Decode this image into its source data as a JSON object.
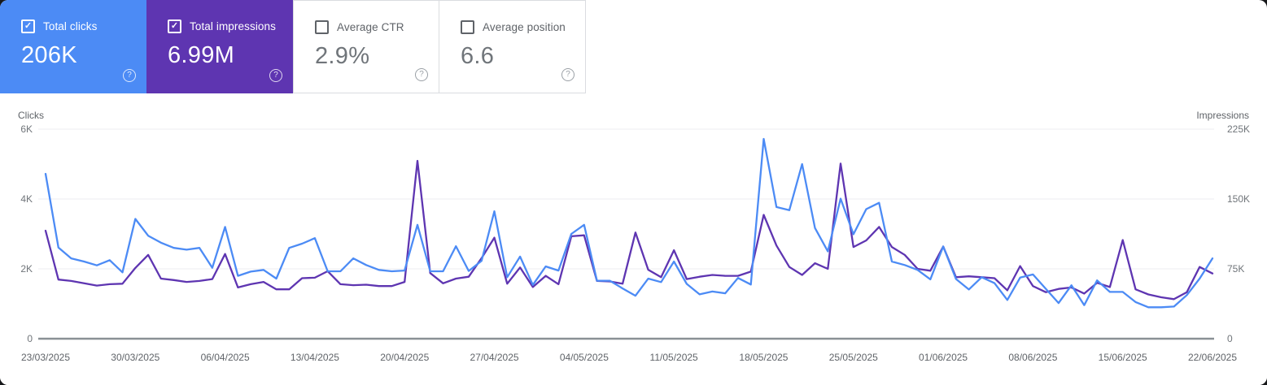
{
  "app": "Search Console performance overview",
  "icons": {
    "help": "?",
    "check": "✓"
  },
  "cards": [
    {
      "label": "Total clicks",
      "value": "206K",
      "checked": true,
      "selected": true,
      "bg": "#4c8bf5"
    },
    {
      "label": "Total impressions",
      "value": "6.99M",
      "checked": true,
      "selected": true,
      "bg": "#5e35b1"
    },
    {
      "label": "Average CTR",
      "value": "2.9%",
      "checked": false,
      "selected": false,
      "bg": "#ffffff"
    },
    {
      "label": "Average position",
      "value": "6.6",
      "checked": false,
      "selected": false,
      "bg": "#ffffff"
    }
  ],
  "chart_data": {
    "type": "line",
    "grid": "horizontal-only",
    "legend_position": "none",
    "x_labels": [
      "23/03/2025",
      "30/03/2025",
      "06/04/2025",
      "13/04/2025",
      "20/04/2025",
      "27/04/2025",
      "04/05/2025",
      "11/05/2025",
      "18/05/2025",
      "25/05/2025",
      "01/06/2025",
      "08/06/2025",
      "15/06/2025",
      "22/06/2025"
    ],
    "x_start_date": "23/03/2025",
    "x_end_date": "22/06/2025",
    "points_per_series": 92,
    "left_axis": {
      "title": "Clicks",
      "ticks": [
        "6K",
        "4K",
        "2K",
        "0"
      ],
      "max": 6000
    },
    "right_axis": {
      "title": "Impressions",
      "ticks": [
        "225K",
        "150K",
        "75K",
        "0"
      ],
      "max": 225000
    },
    "series": [
      {
        "name": "Total clicks",
        "axis": "left",
        "color": "#4c8bf5",
        "values": [
          4720,
          2610,
          2300,
          2210,
          2100,
          2250,
          1900,
          3430,
          2950,
          2750,
          2600,
          2550,
          2600,
          2030,
          3200,
          1800,
          1920,
          1970,
          1720,
          2600,
          2720,
          2880,
          1930,
          1930,
          2300,
          2110,
          1970,
          1930,
          1950,
          3260,
          1930,
          1930,
          2650,
          1940,
          2230,
          3650,
          1760,
          2350,
          1540,
          2070,
          1950,
          3000,
          3260,
          1660,
          1660,
          1440,
          1230,
          1720,
          1620,
          2210,
          1570,
          1270,
          1350,
          1300,
          1740,
          1550,
          5720,
          3770,
          3680,
          5000,
          3170,
          2500,
          4010,
          2990,
          3710,
          3890,
          2210,
          2110,
          1970,
          1700,
          2640,
          1710,
          1410,
          1760,
          1590,
          1110,
          1750,
          1840,
          1430,
          1020,
          1530,
          960,
          1670,
          1340,
          1340,
          1050,
          900,
          900,
          920,
          1250,
          1720,
          2300
        ]
      },
      {
        "name": "Total impressions",
        "axis": "right",
        "color": "#5e35b1",
        "values": [
          116000,
          63500,
          62000,
          59500,
          57000,
          58500,
          59000,
          76000,
          90000,
          64500,
          63000,
          61000,
          62000,
          64000,
          91000,
          55000,
          58500,
          61000,
          53000,
          53000,
          65000,
          65500,
          72500,
          58500,
          57500,
          58000,
          56500,
          56500,
          61000,
          191000,
          70500,
          59500,
          64500,
          66500,
          86500,
          108500,
          59000,
          76500,
          55500,
          67500,
          58500,
          110000,
          111000,
          62000,
          61500,
          59000,
          114000,
          74000,
          66000,
          95000,
          64000,
          66500,
          68500,
          67500,
          67500,
          72000,
          133000,
          100000,
          77000,
          68500,
          81000,
          75000,
          188000,
          98500,
          105500,
          120000,
          98500,
          90000,
          75000,
          73000,
          99000,
          66000,
          67000,
          66000,
          65000,
          52000,
          78000,
          56500,
          50000,
          53500,
          55000,
          48500,
          60000,
          55500,
          106000,
          53000,
          47500,
          44500,
          42500,
          50000,
          77000,
          70000
        ]
      }
    ]
  }
}
